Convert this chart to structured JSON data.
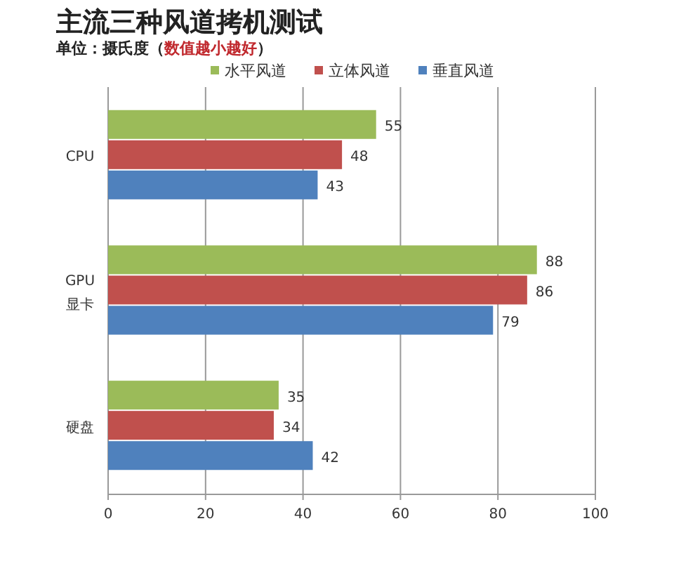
{
  "chart_data": {
    "type": "bar",
    "orientation": "horizontal",
    "title": "主流三种风道拷机测试",
    "subtitle": "单位：摄氏度（数值越小越好）",
    "categories": [
      "CPU",
      "GPU\n显卡",
      "硬盘"
    ],
    "series": [
      {
        "name": "水平风道",
        "color": "#9bbb59",
        "values": [
          55,
          88,
          35
        ]
      },
      {
        "name": "立体风道",
        "color": "#c0504d",
        "values": [
          48,
          86,
          34
        ]
      },
      {
        "name": "垂直风道",
        "color": "#4f81bd",
        "values": [
          43,
          79,
          42
        ]
      }
    ],
    "xlim": [
      0,
      100
    ],
    "xticks": [
      0,
      20,
      40,
      60,
      80,
      100
    ],
    "grid": "x",
    "legend": "top",
    "data_labels": true
  }
}
